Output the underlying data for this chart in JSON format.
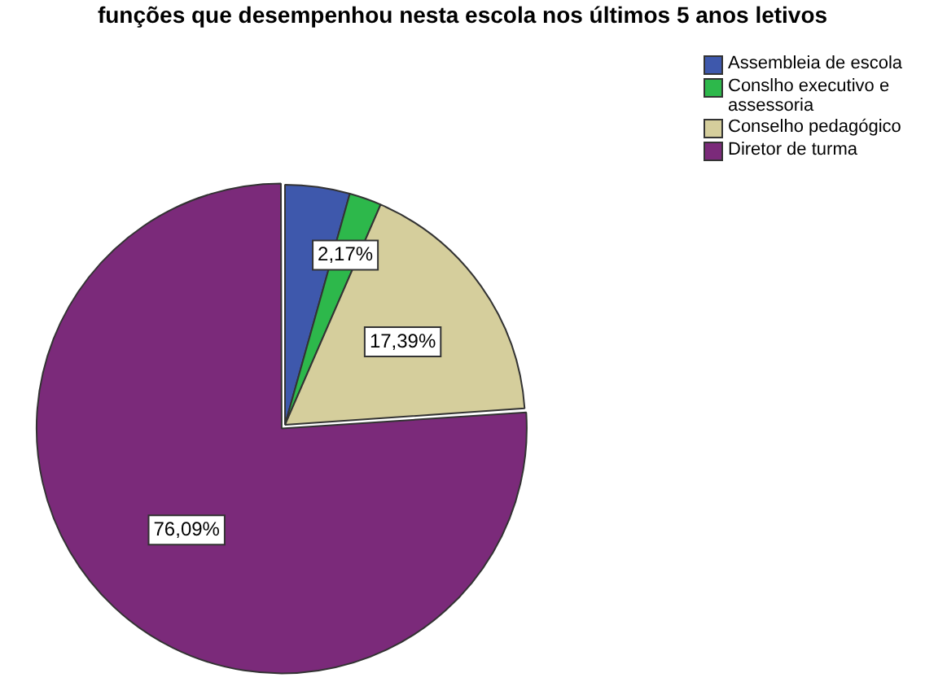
{
  "chart_data": {
    "type": "pie",
    "title": "funções que desempenhou nesta escola nos últimos 5 anos letivos",
    "categories": [
      "Assembleia de escola",
      "Conslho executivo e assessoria",
      "Conselho pedagógico",
      "Diretor de turma"
    ],
    "values": [
      4.35,
      2.17,
      17.39,
      76.09
    ],
    "colors": [
      "#3e58ac",
      "#2db84b",
      "#d5ce9c",
      "#7b2a7a"
    ],
    "value_labels": [
      null,
      "2,17%",
      "17,39%",
      "76,09%"
    ],
    "legend": "top right"
  }
}
